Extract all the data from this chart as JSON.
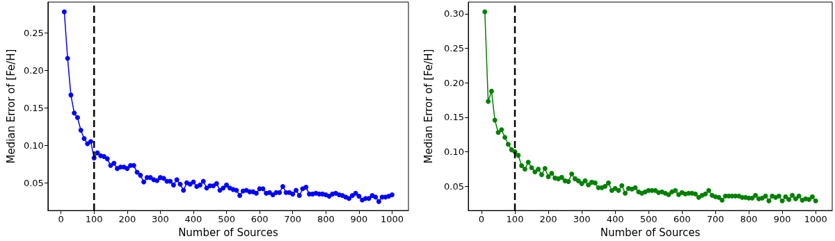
{
  "chart_data": [
    {
      "type": "line",
      "xlabel": "Number of Sources",
      "ylabel": "Median Error of [Fe/H]",
      "marker": "circle",
      "line_style": "solid",
      "x": [
        10,
        20,
        30,
        40,
        50,
        60,
        70,
        80,
        90,
        100,
        110,
        120,
        130,
        140,
        150,
        160,
        170,
        180,
        190,
        200,
        210,
        220,
        230,
        240,
        250,
        260,
        270,
        280,
        290,
        300,
        310,
        320,
        330,
        340,
        350,
        360,
        370,
        380,
        390,
        400,
        410,
        420,
        430,
        440,
        450,
        460,
        470,
        480,
        490,
        500,
        510,
        520,
        530,
        540,
        550,
        560,
        570,
        580,
        590,
        600,
        610,
        620,
        630,
        640,
        650,
        660,
        670,
        680,
        690,
        700,
        710,
        720,
        730,
        740,
        750,
        760,
        770,
        780,
        790,
        800,
        810,
        820,
        830,
        840,
        850,
        860,
        870,
        880,
        890,
        900,
        910,
        920,
        930,
        940,
        950,
        960,
        970,
        980,
        990,
        1000
      ],
      "series": [
        {
          "color": "#0000ff",
          "values": [
            0.278,
            0.216,
            0.167,
            0.143,
            0.137,
            0.12,
            0.109,
            0.102,
            0.105,
            0.083,
            0.09,
            0.086,
            0.085,
            0.082,
            0.073,
            0.076,
            0.069,
            0.071,
            0.071,
            0.069,
            0.073,
            0.073,
            0.064,
            0.06,
            0.051,
            0.057,
            0.057,
            0.054,
            0.053,
            0.057,
            0.056,
            0.052,
            0.052,
            0.047,
            0.054,
            0.048,
            0.04,
            0.05,
            0.048,
            0.051,
            0.045,
            0.047,
            0.052,
            0.043,
            0.046,
            0.046,
            0.049,
            0.04,
            0.043,
            0.047,
            0.043,
            0.041,
            0.04,
            0.033,
            0.039,
            0.04,
            0.038,
            0.038,
            0.036,
            0.042,
            0.042,
            0.036,
            0.037,
            0.034,
            0.037,
            0.037,
            0.045,
            0.037,
            0.037,
            0.035,
            0.04,
            0.033,
            0.042,
            0.044,
            0.035,
            0.035,
            0.036,
            0.035,
            0.035,
            0.034,
            0.032,
            0.035,
            0.036,
            0.034,
            0.033,
            0.031,
            0.029,
            0.033,
            0.036,
            0.032,
            0.027,
            0.029,
            0.029,
            0.033,
            0.031,
            0.025,
            0.031,
            0.031,
            0.032,
            0.034
          ]
        }
      ],
      "xlim": [
        -39.5,
        1049.5
      ],
      "xticks": [
        0,
        100,
        200,
        300,
        400,
        500,
        600,
        700,
        800,
        900,
        1000
      ],
      "ylim": [
        0.013,
        0.291
      ],
      "yticks": [
        0.05,
        {
          "value": 0.1,
          "label": "0.10"
        },
        0.15,
        {
          "value": 0.2,
          "label": "0.20"
        },
        0.25
      ],
      "ref_lines": [
        {
          "axis": "x",
          "value": 100,
          "color": "#000000",
          "line_style": "dashed"
        }
      ]
    },
    {
      "type": "line",
      "xlabel": "Number of Sources",
      "ylabel": "Median Error of [Fe/H]",
      "marker": "circle",
      "line_style": "solid",
      "x": [
        10,
        20,
        30,
        40,
        50,
        60,
        70,
        80,
        90,
        100,
        110,
        120,
        130,
        140,
        150,
        160,
        170,
        180,
        190,
        200,
        210,
        220,
        230,
        240,
        250,
        260,
        270,
        280,
        290,
        300,
        310,
        320,
        330,
        340,
        350,
        360,
        370,
        380,
        390,
        400,
        410,
        420,
        430,
        440,
        450,
        460,
        470,
        480,
        490,
        500,
        510,
        520,
        530,
        540,
        550,
        560,
        570,
        580,
        590,
        600,
        610,
        620,
        630,
        640,
        650,
        660,
        670,
        680,
        690,
        700,
        710,
        720,
        730,
        740,
        750,
        760,
        770,
        780,
        790,
        800,
        810,
        820,
        830,
        840,
        850,
        860,
        870,
        880,
        890,
        900,
        910,
        920,
        930,
        940,
        950,
        960,
        970,
        980,
        990,
        1000
      ],
      "series": [
        {
          "color": "#008000",
          "values": [
            0.303,
            0.173,
            0.188,
            0.146,
            0.128,
            0.132,
            0.121,
            0.111,
            0.103,
            0.1,
            0.095,
            0.08,
            0.075,
            0.085,
            0.077,
            0.071,
            0.075,
            0.067,
            0.076,
            0.064,
            0.069,
            0.062,
            0.061,
            0.063,
            0.058,
            0.057,
            0.068,
            0.061,
            0.058,
            0.054,
            0.058,
            0.052,
            0.056,
            0.055,
            0.048,
            0.048,
            0.05,
            0.055,
            0.044,
            0.047,
            0.044,
            0.051,
            0.04,
            0.047,
            0.046,
            0.048,
            0.042,
            0.04,
            0.042,
            0.044,
            0.044,
            0.044,
            0.041,
            0.042,
            0.04,
            0.038,
            0.042,
            0.044,
            0.038,
            0.041,
            0.039,
            0.04,
            0.04,
            0.039,
            0.034,
            0.037,
            0.039,
            0.044,
            0.037,
            0.035,
            0.034,
            0.03,
            0.036,
            0.036,
            0.036,
            0.036,
            0.036,
            0.034,
            0.034,
            0.033,
            0.033,
            0.037,
            0.032,
            0.033,
            0.036,
            0.029,
            0.036,
            0.034,
            0.036,
            0.029,
            0.035,
            0.031,
            0.037,
            0.032,
            0.036,
            0.03,
            0.032,
            0.031,
            0.035,
            0.029
          ]
        }
      ],
      "xlim": [
        -39.5,
        1049.5
      ],
      "xticks": [
        0,
        100,
        200,
        300,
        400,
        500,
        600,
        700,
        800,
        900,
        1000
      ],
      "ylim": [
        0.015,
        0.317
      ],
      "yticks": [
        0.05,
        {
          "value": 0.1,
          "label": "0.10"
        },
        0.15,
        {
          "value": 0.2,
          "label": "0.20"
        },
        0.25,
        {
          "value": 0.3,
          "label": "0.30"
        }
      ],
      "ref_lines": [
        {
          "axis": "x",
          "value": 100,
          "color": "#000000",
          "line_style": "dashed"
        }
      ]
    }
  ]
}
